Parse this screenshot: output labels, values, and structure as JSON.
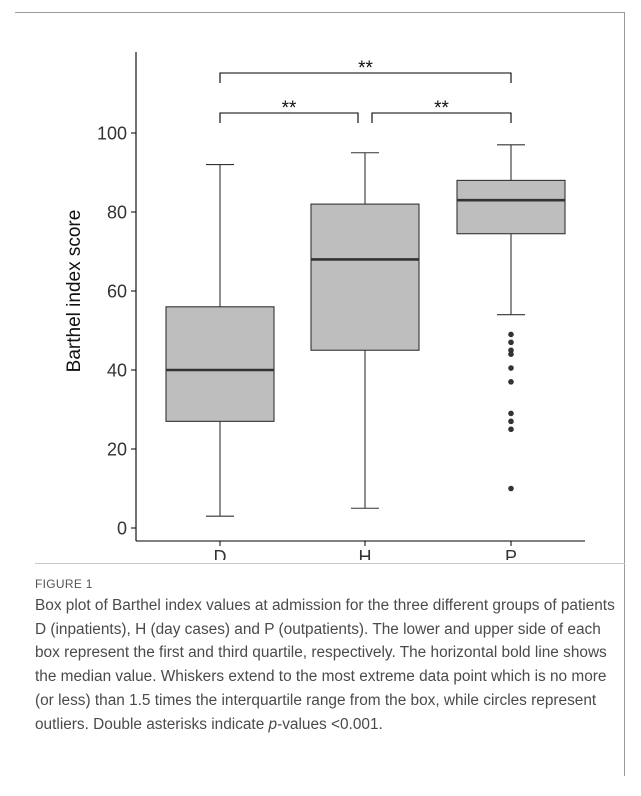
{
  "chart_data": {
    "type": "box",
    "ylabel": "Barthel index score",
    "xlabel": "",
    "ylim": [
      -2,
      117
    ],
    "yticks": [
      0,
      20,
      40,
      60,
      80,
      100
    ],
    "categories": [
      "D",
      "H",
      "P"
    ],
    "boxes": [
      {
        "category": "D",
        "whisker_low": 3,
        "q1": 27,
        "median": 40,
        "q3": 56,
        "whisker_high": 92,
        "outliers": []
      },
      {
        "category": "H",
        "whisker_low": 5,
        "q1": 45,
        "median": 68,
        "q3": 82,
        "whisker_high": 95,
        "outliers": []
      },
      {
        "category": "P",
        "whisker_low": 54,
        "q1": 74.5,
        "median": 83,
        "q3": 88,
        "whisker_high": 97,
        "outliers": [
          49,
          47,
          45,
          44,
          40.5,
          37,
          29,
          27,
          25,
          10
        ]
      }
    ],
    "significance": [
      {
        "from": "D",
        "to": "H",
        "label": "**"
      },
      {
        "from": "H",
        "to": "P",
        "label": "**"
      },
      {
        "from": "D",
        "to": "P",
        "label": "**"
      }
    ],
    "colors": {
      "box_fill": "#bebebe",
      "stroke": "#333333"
    },
    "grid": false
  },
  "caption": {
    "label": "FIGURE 1",
    "text_before_p": "Box plot of Barthel index values at admission for the three different groups of patients D (inpatients), H (day cases) and P (outpatients). The lower and upper side of each box represent the first and third quartile, respectively. The horizontal bold line shows the median value. Whiskers extend to the most extreme data point which is no more (or less) than 1.5 times the interquartile range from the box, while circles represent outliers. Double asterisks indicate ",
    "p_symbol": "p",
    "text_after_p": "-values <0.001."
  }
}
